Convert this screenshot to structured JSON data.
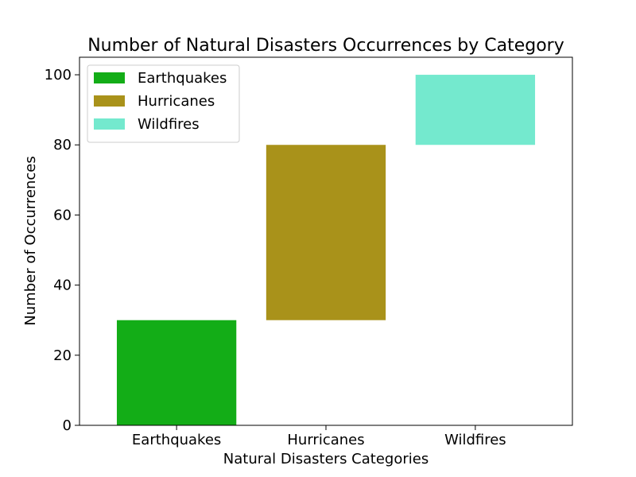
{
  "chart_data": {
    "type": "bar",
    "title": "Number of Natural Disasters Occurrences by Category",
    "xlabel": "Natural Disasters Categories",
    "ylabel": "Number of Occurrences",
    "categories": [
      "Earthquakes",
      "Hurricanes",
      "Wildfires"
    ],
    "series": [
      {
        "name": "Earthquakes",
        "category": "Earthquakes",
        "bottom": 0,
        "value": 30,
        "color": "#13ad17"
      },
      {
        "name": "Hurricanes",
        "category": "Hurricanes",
        "bottom": 30,
        "value": 50,
        "color": "#a9921a"
      },
      {
        "name": "Wildfires",
        "category": "Wildfires",
        "bottom": 80,
        "value": 20,
        "color": "#74e9ce"
      }
    ],
    "ylim": [
      0,
      105
    ],
    "yticks": [
      0,
      20,
      40,
      60,
      80,
      100
    ],
    "grid": false,
    "legend_position": "top-left"
  }
}
